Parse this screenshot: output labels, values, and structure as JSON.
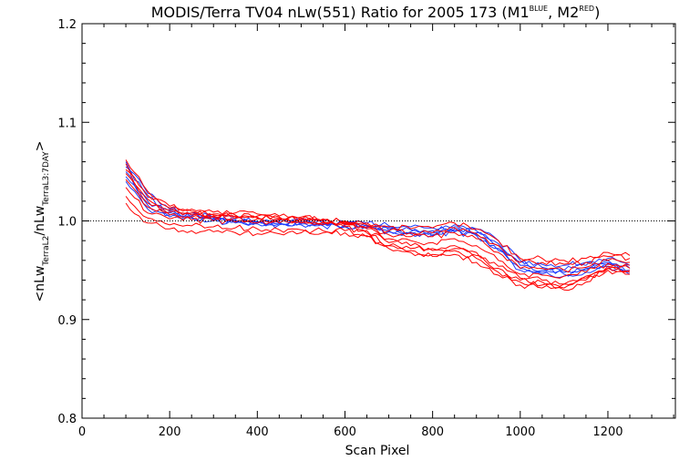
{
  "title": {
    "main": "MODIS/Terra TV04 nLw(551) Ratio for 2005 173 (M1",
    "sup1": "BLUE",
    "mid": ", M2",
    "sup2": "RED",
    "end": ")"
  },
  "ylabel": {
    "open": "<nLw",
    "sub1": "TerraL2",
    "slash": "/nLw",
    "sub2": "TerraL3:7DAY",
    "close": ">"
  },
  "colors": {
    "m1": "#1e3cff",
    "m2": "#ff0000",
    "axis": "#000000"
  },
  "chart_data": {
    "type": "line",
    "title": "MODIS/Terra TV04 nLw(551) Ratio for 2005 173 (M1 BLUE, M2 RED)",
    "xlabel": "Scan Pixel",
    "ylabel": "<nLw TerraL2 / nLw TerraL3:7DAY>",
    "xlim": [
      0,
      1354
    ],
    "ylim": [
      0.8,
      1.2
    ],
    "xticks": [
      0,
      200,
      400,
      600,
      800,
      1000,
      1200
    ],
    "xtick_labels": [
      "0",
      "200",
      "400",
      "600",
      "800",
      "1000",
      "1200"
    ],
    "yticks": [
      0.8,
      0.9,
      1.0,
      1.1,
      1.2
    ],
    "ytick_labels": [
      "0.8",
      "0.9",
      "1.0",
      "1.1",
      "1.2"
    ],
    "reference_line": 1.0,
    "grid": false,
    "x": [
      100,
      150,
      200,
      250,
      300,
      350,
      400,
      450,
      500,
      550,
      600,
      650,
      700,
      750,
      800,
      850,
      900,
      950,
      1000,
      1050,
      1100,
      1150,
      1200,
      1250
    ],
    "series": [
      {
        "group": "M1",
        "color": "#1e3cff",
        "values": [
          1.06,
          1.028,
          1.012,
          1.008,
          1.004,
          1.002,
          1.0,
          1.0,
          1.001,
          1.0,
          0.998,
          0.998,
          0.995,
          0.994,
          0.993,
          0.996,
          0.992,
          0.98,
          0.96,
          0.956,
          0.955,
          0.958,
          0.962,
          0.955
        ]
      },
      {
        "group": "M1",
        "color": "#1e3cff",
        "values": [
          1.055,
          1.024,
          1.01,
          1.006,
          1.003,
          1.001,
          0.999,
          0.999,
          0.999,
          0.998,
          0.997,
          0.996,
          0.993,
          0.991,
          0.99,
          0.994,
          0.99,
          0.977,
          0.958,
          0.953,
          0.95,
          0.955,
          0.96,
          0.952
        ]
      },
      {
        "group": "M1",
        "color": "#1e3cff",
        "values": [
          1.05,
          1.02,
          1.008,
          1.005,
          1.002,
          1.0,
          0.998,
          0.998,
          0.998,
          0.997,
          0.996,
          0.995,
          0.991,
          0.989,
          0.988,
          0.992,
          0.988,
          0.975,
          0.955,
          0.95,
          0.948,
          0.952,
          0.958,
          0.95
        ]
      },
      {
        "group": "M1",
        "color": "#1e3cff",
        "values": [
          1.045,
          1.016,
          1.006,
          1.004,
          1.001,
          0.999,
          0.998,
          0.997,
          0.997,
          0.996,
          0.995,
          0.994,
          0.99,
          0.988,
          0.986,
          0.99,
          0.986,
          0.972,
          0.952,
          0.948,
          0.946,
          0.95,
          0.956,
          0.948
        ]
      },
      {
        "group": "M1",
        "color": "#1e3cff",
        "values": [
          1.04,
          1.012,
          1.004,
          1.003,
          1.0,
          0.998,
          0.997,
          0.996,
          0.996,
          0.995,
          0.994,
          0.993,
          0.989,
          0.987,
          0.985,
          0.989,
          0.985,
          0.97,
          0.95,
          0.946,
          0.944,
          0.948,
          0.954,
          0.946
        ]
      },
      {
        "group": "M2",
        "color": "#ff0000",
        "values": [
          1.062,
          1.03,
          1.015,
          1.012,
          1.009,
          1.008,
          1.007,
          1.005,
          1.004,
          1.002,
          1.0,
          0.998,
          0.994,
          0.992,
          0.993,
          0.998,
          0.992,
          0.98,
          0.962,
          0.962,
          0.96,
          0.962,
          0.968,
          0.965
        ]
      },
      {
        "group": "M2",
        "color": "#ff0000",
        "values": [
          1.058,
          1.026,
          1.013,
          1.01,
          1.007,
          1.006,
          1.005,
          1.004,
          1.003,
          1.001,
          0.999,
          0.996,
          0.99,
          0.988,
          0.988,
          0.993,
          0.987,
          0.975,
          0.958,
          0.958,
          0.956,
          0.958,
          0.964,
          0.962
        ]
      },
      {
        "group": "M2",
        "color": "#ff0000",
        "values": [
          1.052,
          1.022,
          1.011,
          1.008,
          1.006,
          1.005,
          1.004,
          1.003,
          1.002,
          1.0,
          0.998,
          0.994,
          0.986,
          0.984,
          0.984,
          0.988,
          0.982,
          0.968,
          0.952,
          0.952,
          0.95,
          0.953,
          0.96,
          0.958
        ]
      },
      {
        "group": "M2",
        "color": "#ff0000",
        "values": [
          1.048,
          1.018,
          1.009,
          1.006,
          1.005,
          1.004,
          1.003,
          1.002,
          1.001,
          0.999,
          0.997,
          0.992,
          0.982,
          0.98,
          0.978,
          0.982,
          0.975,
          0.96,
          0.946,
          0.945,
          0.944,
          0.948,
          0.957,
          0.955
        ]
      },
      {
        "group": "M2",
        "color": "#ff0000",
        "values": [
          1.042,
          1.014,
          1.006,
          1.004,
          1.004,
          1.003,
          1.002,
          1.001,
          1.0,
          0.998,
          0.996,
          0.99,
          0.978,
          0.975,
          0.972,
          0.975,
          0.968,
          0.954,
          0.942,
          0.94,
          0.936,
          0.944,
          0.954,
          0.952
        ]
      },
      {
        "group": "M2",
        "color": "#ff0000",
        "values": [
          1.034,
          1.008,
          1.002,
          1.001,
          1.0,
          0.999,
          0.998,
          0.998,
          0.998,
          0.996,
          0.994,
          0.988,
          0.975,
          0.97,
          0.966,
          0.97,
          0.962,
          0.948,
          0.938,
          0.935,
          0.932,
          0.94,
          0.952,
          0.95
        ]
      },
      {
        "group": "M2",
        "color": "#ff0000",
        "values": [
          1.025,
          1.003,
          0.996,
          0.995,
          0.994,
          0.993,
          0.992,
          0.991,
          0.991,
          0.99,
          0.99,
          0.985,
          0.972,
          0.968,
          0.964,
          0.966,
          0.958,
          0.945,
          0.935,
          0.932,
          0.93,
          0.938,
          0.95,
          0.946
        ]
      },
      {
        "group": "M2",
        "color": "#ff0000",
        "values": [
          1.018,
          0.998,
          0.992,
          0.99,
          0.989,
          0.988,
          0.987,
          0.987,
          0.988,
          0.988,
          0.988,
          0.984,
          0.975,
          0.972,
          0.97,
          0.972,
          0.965,
          0.952,
          0.94,
          0.938,
          0.936,
          0.942,
          0.952,
          0.948
        ]
      }
    ]
  }
}
